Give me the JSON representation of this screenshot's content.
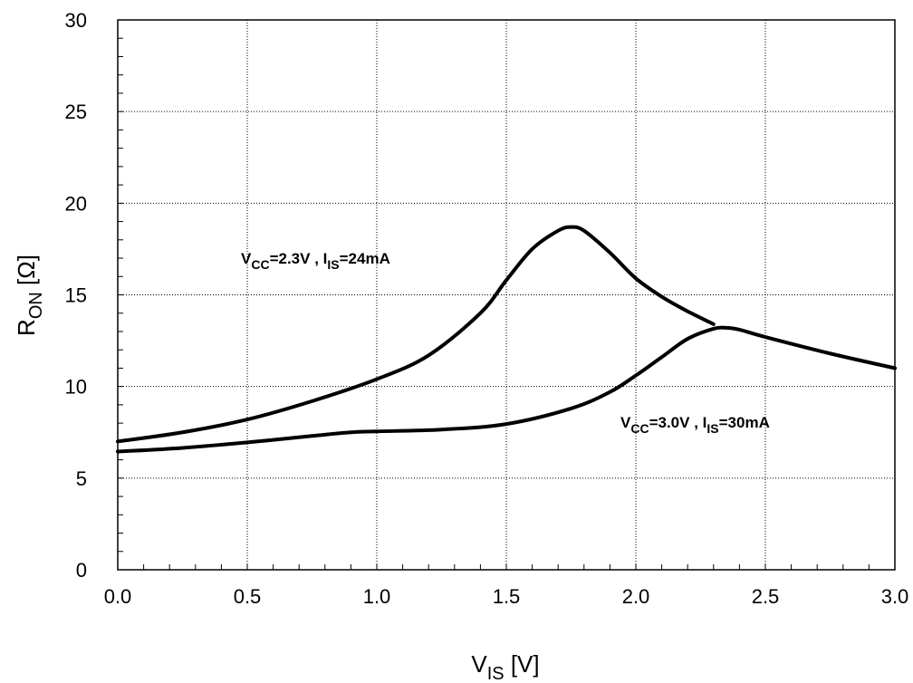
{
  "chart_data": {
    "type": "line",
    "title": "",
    "xlabel": {
      "main": "V",
      "sub": "IS",
      "unit": " [V]"
    },
    "ylabel": {
      "main": "R",
      "sub": "ON",
      "unit": " [Ω]"
    },
    "xlim": [
      0,
      3
    ],
    "ylim": [
      0,
      30
    ],
    "grid": true,
    "x_ticks": [
      "0.0",
      "0.5",
      "1.0",
      "1.5",
      "2.0",
      "2.5",
      "3.0"
    ],
    "y_ticks": [
      "0",
      "5",
      "10",
      "15",
      "20",
      "25",
      "30"
    ],
    "series": [
      {
        "annotation": {
          "v": "V",
          "vsub": "CC",
          "vval": "=2.3V , ",
          "i": "I",
          "isub": "IS",
          "ival": "=24mA"
        },
        "x": [
          0.0,
          0.25,
          0.5,
          0.75,
          1.0,
          1.2,
          1.4,
          1.5,
          1.6,
          1.7,
          1.75,
          1.8,
          1.9,
          2.0,
          2.1,
          2.2,
          2.3
        ],
        "y": [
          7.0,
          7.5,
          8.2,
          9.2,
          10.4,
          11.7,
          14.0,
          15.8,
          17.5,
          18.5,
          18.7,
          18.5,
          17.3,
          15.9,
          14.9,
          14.1,
          13.4
        ]
      },
      {
        "annotation": {
          "v": "V",
          "vsub": "CC",
          "vval": "=3.0V , ",
          "i": "I",
          "isub": "IS",
          "ival": "=30mA"
        },
        "x": [
          0.0,
          0.25,
          0.5,
          0.75,
          0.9,
          1.0,
          1.25,
          1.5,
          1.75,
          1.9,
          2.0,
          2.1,
          2.2,
          2.3,
          2.35,
          2.4,
          2.5,
          2.75,
          3.0
        ],
        "y": [
          6.45,
          6.65,
          6.95,
          7.3,
          7.5,
          7.55,
          7.65,
          7.95,
          8.8,
          9.7,
          10.6,
          11.6,
          12.6,
          13.15,
          13.2,
          13.1,
          12.7,
          11.8,
          11.0
        ]
      }
    ]
  }
}
